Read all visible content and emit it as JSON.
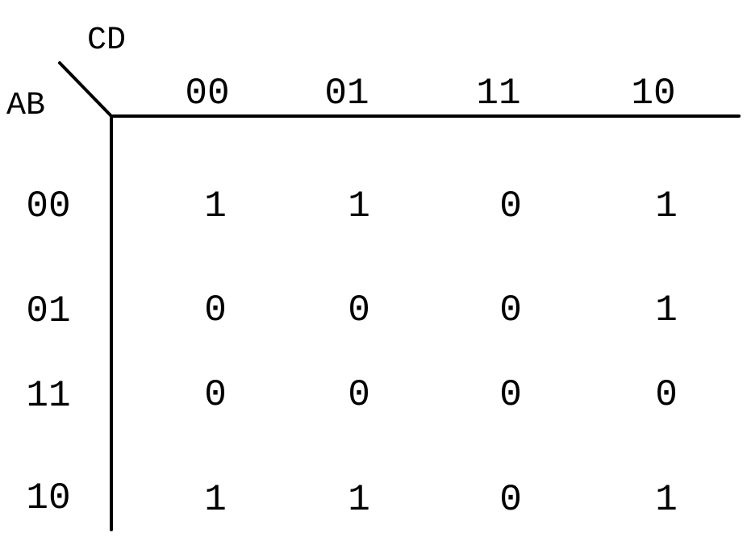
{
  "kmap": {
    "column_variables": "CD",
    "row_variables": "AB",
    "column_headers": [
      "00",
      "01",
      "11",
      "10"
    ],
    "row_headers": [
      "00",
      "01",
      "11",
      "10"
    ],
    "cells": [
      [
        "1",
        "1",
        "0",
        "1"
      ],
      [
        "0",
        "0",
        "0",
        "1"
      ],
      [
        "0",
        "0",
        "0",
        "0"
      ],
      [
        "1",
        "1",
        "0",
        "1"
      ]
    ]
  }
}
